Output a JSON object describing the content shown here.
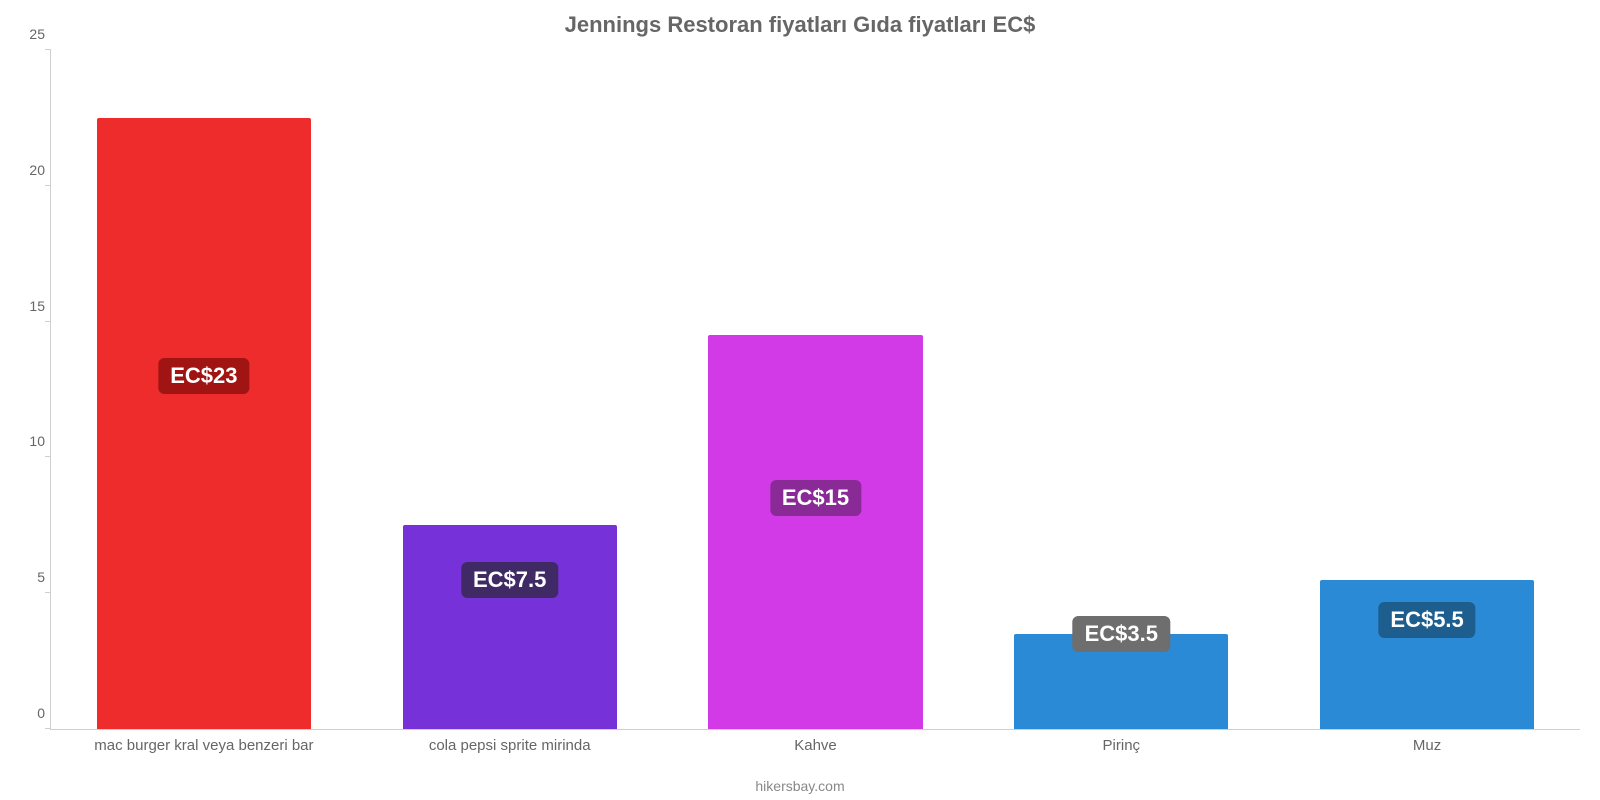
{
  "chart": {
    "type": "bar",
    "title": "Jennings Restoran fiyatları Gıda fiyatları EC$",
    "title_fontsize": 22,
    "title_color": "#666666",
    "footer": "hikersbay.com",
    "footer_color": "#888888",
    "background_color": "#ffffff",
    "axis_line_color": "#cfcfcf",
    "tick_label_color": "#666666",
    "tick_label_fontsize": 14,
    "xlabel_fontsize": 15,
    "value_label_fontsize": 22,
    "value_label_text_color": "#ffffff",
    "value_label_radius": 6,
    "y": {
      "min": 0,
      "max": 25,
      "tick_step": 5,
      "ticks": [
        0,
        5,
        10,
        15,
        20,
        25
      ]
    },
    "bar_width_pct": 70,
    "categories": [
      {
        "label": "mac burger kral veya benzeri bar",
        "value": 22.5,
        "value_label": "EC$23",
        "color": "#ee2c2c",
        "badge_bg": "#a01414",
        "label_pos_value": 13
      },
      {
        "label": "cola pepsi sprite mirinda",
        "value": 7.5,
        "value_label": "EC$7.5",
        "color": "#7632d8",
        "badge_bg": "#3f2a66",
        "label_pos_value": 5.5
      },
      {
        "label": "Kahve",
        "value": 14.5,
        "value_label": "EC$15",
        "color": "#d23ae8",
        "badge_bg": "#8a2a96",
        "label_pos_value": 8.5
      },
      {
        "label": "Pirinç",
        "value": 3.5,
        "value_label": "EC$3.5",
        "color": "#2a8ad6",
        "badge_bg": "#6e6e6e",
        "label_pos_value": 3.5
      },
      {
        "label": "Muz",
        "value": 5.5,
        "value_label": "EC$5.5",
        "color": "#2a8ad6",
        "badge_bg": "#1d5e8f",
        "label_pos_value": 4
      }
    ]
  }
}
